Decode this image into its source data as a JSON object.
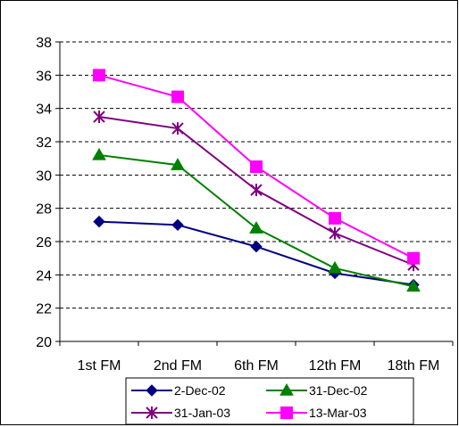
{
  "chart_data": {
    "type": "line",
    "categories": [
      "1st FM",
      "2nd FM",
      "6th FM",
      "12th FM",
      "18th FM"
    ],
    "series": [
      {
        "name": "2-Dec-02",
        "values": [
          27.2,
          27.0,
          25.7,
          24.1,
          23.4
        ],
        "color": "#000080",
        "marker": "diamond"
      },
      {
        "name": "31-Dec-02",
        "values": [
          31.2,
          30.6,
          26.8,
          24.4,
          23.3
        ],
        "color": "#008000",
        "marker": "triangle"
      },
      {
        "name": "31-Jan-03",
        "values": [
          33.5,
          32.8,
          29.1,
          26.5,
          24.6
        ],
        "color": "#800080",
        "marker": "star"
      },
      {
        "name": "13-Mar-03",
        "values": [
          36.0,
          34.7,
          30.5,
          27.4,
          25.0
        ],
        "color": "#FF00FF",
        "marker": "square"
      }
    ],
    "ylim": [
      20,
      38
    ],
    "yticks": [
      20,
      22,
      24,
      26,
      28,
      30,
      32,
      34,
      36,
      38
    ],
    "grid": "horizontal dashed",
    "legend": "bottom"
  }
}
